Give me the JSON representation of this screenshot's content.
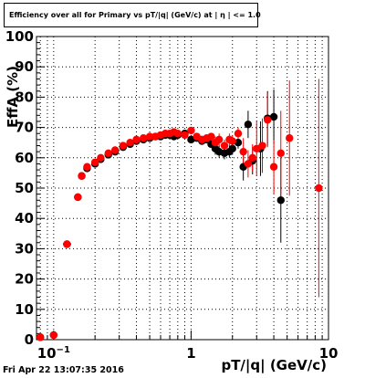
{
  "header": {
    "title": "Efficiency over all for Primary vs pT/|q| (GeV/c) at | η | <= 1.0"
  },
  "footer": {
    "timestamp": "Fri Apr 22 13:07:35 2016"
  },
  "chart_data": {
    "type": "scatter",
    "title": "Efficiency over all for Primary vs pT/|q| (GeV/c) at | η | <= 1.0",
    "xlabel": "pT/|q| (GeV/c)",
    "ylabel": "EffA (%)",
    "xscale": "log",
    "xlim": [
      0.075,
      10
    ],
    "ylim": [
      0,
      100
    ],
    "grid": true,
    "xticks": [
      {
        "value": 0.1,
        "label": "10",
        "sup": "−1"
      },
      {
        "value": 1,
        "label": "1",
        "sup": ""
      },
      {
        "value": 10,
        "label": "10",
        "sup": ""
      }
    ],
    "yticks": [
      0,
      10,
      20,
      30,
      40,
      50,
      60,
      70,
      80,
      90,
      100
    ],
    "series": [
      {
        "color": "#000000",
        "points": [
          {
            "x": 0.08,
            "y": 0.8
          },
          {
            "x": 0.1,
            "y": 1.5
          },
          {
            "x": 0.125,
            "y": 31.5
          },
          {
            "x": 0.15,
            "y": 47
          },
          {
            "x": 0.16,
            "y": 54
          },
          {
            "x": 0.175,
            "y": 56.5
          },
          {
            "x": 0.2,
            "y": 58
          },
          {
            "x": 0.22,
            "y": 59.5
          },
          {
            "x": 0.25,
            "y": 61
          },
          {
            "x": 0.28,
            "y": 62
          },
          {
            "x": 0.32,
            "y": 63.5
          },
          {
            "x": 0.36,
            "y": 64.5
          },
          {
            "x": 0.4,
            "y": 65.5
          },
          {
            "x": 0.45,
            "y": 66
          },
          {
            "x": 0.5,
            "y": 66.5
          },
          {
            "x": 0.55,
            "y": 67
          },
          {
            "x": 0.6,
            "y": 67
          },
          {
            "x": 0.65,
            "y": 67.5
          },
          {
            "x": 0.7,
            "y": 67.5
          },
          {
            "x": 0.75,
            "y": 67
          },
          {
            "x": 0.8,
            "y": 67.5
          },
          {
            "x": 0.9,
            "y": 68
          },
          {
            "x": 1.0,
            "y": 66
          },
          {
            "x": 1.1,
            "y": 66.5
          },
          {
            "x": 1.2,
            "y": 65.5
          },
          {
            "x": 1.3,
            "y": 66
          },
          {
            "x": 1.4,
            "y": 64.5
          },
          {
            "x": 1.5,
            "y": 63
          },
          {
            "x": 1.6,
            "y": 62
          },
          {
            "x": 1.75,
            "y": 61.5
          },
          {
            "x": 1.9,
            "y": 62
          },
          {
            "x": 2.0,
            "y": 63
          },
          {
            "x": 2.2,
            "y": 65
          },
          {
            "x": 2.4,
            "y": 57
          },
          {
            "x": 2.6,
            "y": 71
          },
          {
            "x": 2.8,
            "y": 59
          },
          {
            "x": 3.2,
            "y": 63
          },
          {
            "x": 3.6,
            "y": 73
          },
          {
            "x": 4.0,
            "y": 73.5
          },
          {
            "x": 4.5,
            "y": 46
          }
        ]
      },
      {
        "color": "#ff0000",
        "points": [
          {
            "x": 0.08,
            "y": 0.8
          },
          {
            "x": 0.1,
            "y": 1.5
          },
          {
            "x": 0.125,
            "y": 31.5
          },
          {
            "x": 0.15,
            "y": 47
          },
          {
            "x": 0.16,
            "y": 54
          },
          {
            "x": 0.175,
            "y": 57
          },
          {
            "x": 0.2,
            "y": 58.5
          },
          {
            "x": 0.22,
            "y": 60
          },
          {
            "x": 0.25,
            "y": 61.5
          },
          {
            "x": 0.28,
            "y": 62.5
          },
          {
            "x": 0.32,
            "y": 64
          },
          {
            "x": 0.36,
            "y": 65
          },
          {
            "x": 0.4,
            "y": 66
          },
          {
            "x": 0.45,
            "y": 66.5
          },
          {
            "x": 0.5,
            "y": 67
          },
          {
            "x": 0.55,
            "y": 67
          },
          {
            "x": 0.6,
            "y": 67.5
          },
          {
            "x": 0.65,
            "y": 68
          },
          {
            "x": 0.7,
            "y": 68
          },
          {
            "x": 0.75,
            "y": 68.5
          },
          {
            "x": 0.8,
            "y": 68
          },
          {
            "x": 0.9,
            "y": 67.5
          },
          {
            "x": 1.0,
            "y": 69
          },
          {
            "x": 1.1,
            "y": 67
          },
          {
            "x": 1.2,
            "y": 66
          },
          {
            "x": 1.3,
            "y": 66.5
          },
          {
            "x": 1.4,
            "y": 67
          },
          {
            "x": 1.5,
            "y": 65
          },
          {
            "x": 1.6,
            "y": 66
          },
          {
            "x": 1.75,
            "y": 64
          },
          {
            "x": 1.9,
            "y": 66
          },
          {
            "x": 2.0,
            "y": 65.5
          },
          {
            "x": 2.2,
            "y": 68
          },
          {
            "x": 2.4,
            "y": 62
          },
          {
            "x": 2.6,
            "y": 58
          },
          {
            "x": 2.8,
            "y": 60
          },
          {
            "x": 3.0,
            "y": 63
          },
          {
            "x": 3.3,
            "y": 64
          },
          {
            "x": 3.6,
            "y": 72.5
          },
          {
            "x": 4.0,
            "y": 57
          },
          {
            "x": 4.5,
            "y": 61.5
          },
          {
            "x": 5.2,
            "y": 66.5
          },
          {
            "x": 8.5,
            "y": 50
          }
        ]
      }
    ]
  }
}
